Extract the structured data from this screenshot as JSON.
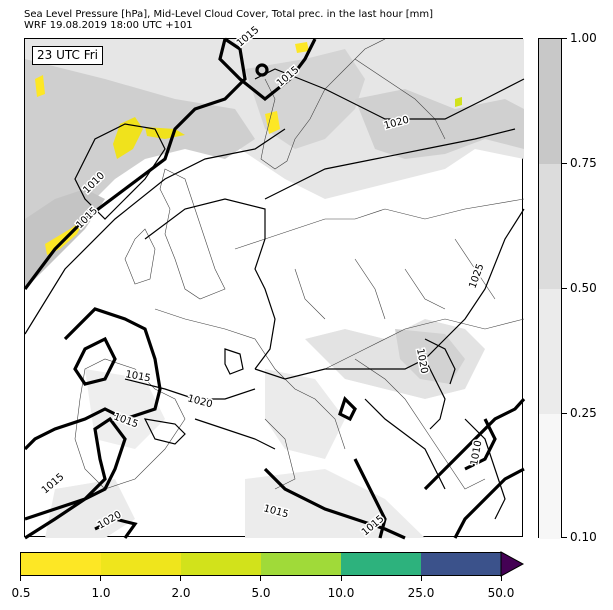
{
  "header": {
    "line1": "Sea Level Pressure [hPa], Mid-Level Cloud Cover, Total prec. in the last hour [mm]",
    "line2": "WRF 19.08.2019 18:00 UTC +101"
  },
  "map": {
    "time_label": "23 UTC Fri",
    "isobar_labels": [
      "1015",
      "1010",
      "1015",
      "1020",
      "1025",
      "1020",
      "1015",
      "1020",
      "1015",
      "1015",
      "1020",
      "1015",
      "1015",
      "1010",
      "1015"
    ]
  },
  "cloud_colorbar": {
    "labels": [
      "1.00",
      "0.75",
      "0.50",
      "0.25",
      "0.10"
    ],
    "colors": [
      "#c8c8c8",
      "#dcdcdc",
      "#ebebeb",
      "#f7f7f7"
    ]
  },
  "precip_colorbar": {
    "labels": [
      "0.5",
      "1.0",
      "2.0",
      "5.0",
      "10.0",
      "25.0",
      "50.0"
    ],
    "colors": [
      "#fde725",
      "#efe51c",
      "#d2e21b",
      "#a0da39",
      "#2db27d",
      "#3b528b",
      "#440154"
    ]
  }
}
